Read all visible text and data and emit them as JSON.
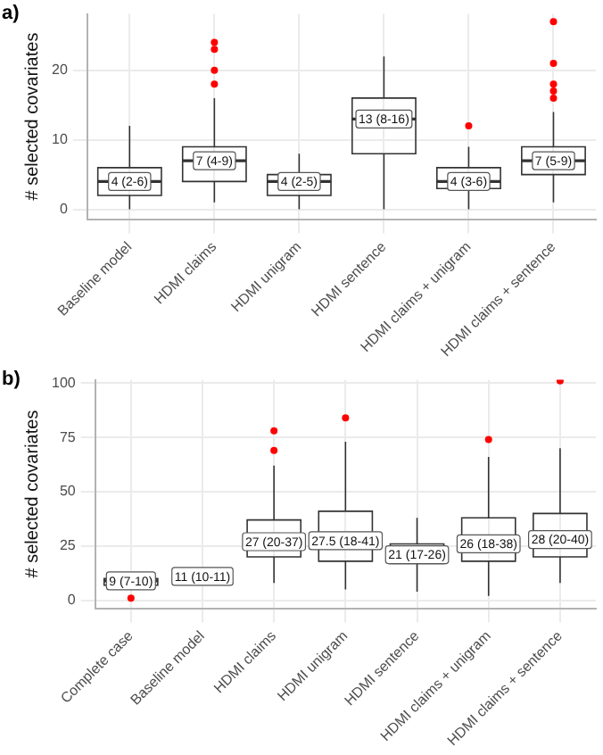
{
  "chart_data": [
    {
      "type": "box",
      "title": "a)",
      "ylabel": "# selected covariates",
      "categories": [
        "Baseline model",
        "HDMI claims",
        "HDMI unigram",
        "HDMI sentence",
        "HDMI claims + unigram",
        "HDMI claims + sentence"
      ],
      "boxes": [
        {
          "low": 0,
          "q1": 2,
          "median": 4,
          "q3": 6,
          "high": 12
        },
        {
          "low": 1,
          "q1": 4,
          "median": 7,
          "q3": 9,
          "high": 16,
          "outliers": [
            18,
            20,
            23,
            24
          ]
        },
        {
          "low": 0,
          "q1": 2,
          "median": 4,
          "q3": 5,
          "high": 8
        },
        {
          "low": 0,
          "q1": 8,
          "median": 13,
          "q3": 16,
          "high": 22
        },
        {
          "low": 0,
          "q1": 3,
          "median": 4,
          "q3": 6,
          "high": 9,
          "outliers": [
            12
          ]
        },
        {
          "low": 1,
          "q1": 5,
          "median": 7,
          "q3": 9,
          "high": 14,
          "outliers": [
            16,
            17,
            18,
            21,
            27
          ]
        }
      ],
      "value_labels": [
        "4 (2-6)",
        "7 (4-9)",
        "4 (2-5)",
        "13 (8-16)",
        "4 (3-6)",
        "7 (5-9)"
      ],
      "color": "#333333",
      "ylim": [
        -1.4,
        28.1
      ],
      "yticks": [
        0,
        10,
        20
      ],
      "grid": true
    },
    {
      "type": "box",
      "title": "b)",
      "ylabel": "# selected covariates",
      "categories": [
        "Complete case",
        "Baseline model",
        "HDMI claims",
        "HDMI unigram",
        "HDMI sentence",
        "HDMI claims + unigram",
        "HDMI claims + sentence"
      ],
      "boxes": [
        {
          "low": 5,
          "q1": 7,
          "median": 9,
          "q3": 10,
          "high": 12,
          "outliers": [
            1
          ]
        },
        {
          "low": 10,
          "q1": 10,
          "median": 11,
          "q3": 11,
          "high": 11
        },
        {
          "low": 8,
          "q1": 20,
          "median": 27,
          "q3": 37,
          "high": 62,
          "outliers": [
            69,
            78
          ]
        },
        {
          "low": 5,
          "q1": 18,
          "median": 27.5,
          "q3": 41,
          "high": 73,
          "outliers": [
            84
          ]
        },
        {
          "low": 4,
          "q1": 17,
          "median": 21,
          "q3": 26,
          "high": 38
        },
        {
          "low": 2,
          "q1": 18,
          "median": 26,
          "q3": 38,
          "high": 66,
          "outliers": [
            74
          ]
        },
        {
          "low": 8,
          "q1": 20,
          "median": 28,
          "q3": 40,
          "high": 70,
          "outliers": [
            101
          ]
        }
      ],
      "value_labels": [
        "9 (7-10)",
        "11 (10-11)",
        "27 (20-37)",
        "27.5 (18-41)",
        "21 (17-26)",
        "26 (18-38)",
        "28 (20-40)"
      ],
      "color": "#333333",
      "ylim": [
        -3.6,
        101.5
      ],
      "yticks": [
        0,
        25,
        50,
        75,
        100
      ],
      "grid": true
    }
  ]
}
